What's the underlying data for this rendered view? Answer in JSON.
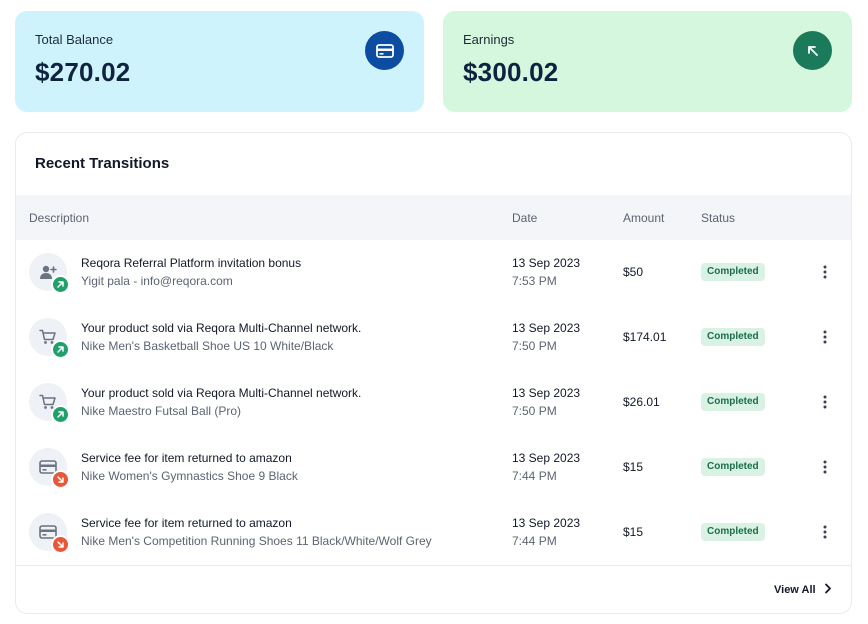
{
  "cards": {
    "balance": {
      "label": "Total Balance",
      "value": "$270.02",
      "icon": "credit-card-icon",
      "color": "#cff3fc"
    },
    "earnings": {
      "label": "Earnings",
      "value": "$300.02",
      "icon": "arrow-up-left-icon",
      "color": "#d4f7dd"
    }
  },
  "panel": {
    "title": "Recent Transitions",
    "columns": {
      "description": "Description",
      "date": "Date",
      "amount": "Amount",
      "status": "Status"
    },
    "rows": [
      {
        "icon": "user-add-icon",
        "direction": "up",
        "title": "Reqora Referral Platform invitation bonus",
        "subtitle": "Yigit pala - info@reqora.com",
        "date": "13 Sep 2023",
        "time": "7:53 PM",
        "amount": "$50",
        "status": "Completed"
      },
      {
        "icon": "cart-icon",
        "direction": "up",
        "title": "Your product sold via Reqora Multi-Channel network.",
        "subtitle": "Nike Men's Basketball Shoe US 10 White/Black",
        "date": "13 Sep 2023",
        "time": "7:50 PM",
        "amount": "$174.01",
        "status": "Completed"
      },
      {
        "icon": "cart-icon",
        "direction": "up",
        "title": "Your product sold via Reqora Multi-Channel network.",
        "subtitle": "Nike Maestro Futsal Ball (Pro)",
        "date": "13 Sep 2023",
        "time": "7:50 PM",
        "amount": "$26.01",
        "status": "Completed"
      },
      {
        "icon": "credit-card-icon",
        "direction": "down",
        "title": "Service fee for item returned to amazon",
        "subtitle": "Nike Women's Gymnastics Shoe 9 Black",
        "date": "13 Sep 2023",
        "time": "7:44 PM",
        "amount": "$15",
        "status": "Completed"
      },
      {
        "icon": "credit-card-icon",
        "direction": "down",
        "title": "Service fee for item returned to amazon",
        "subtitle": "Nike Men's Competition Running Shoes 11 Black/White/Wolf Grey",
        "date": "13 Sep 2023",
        "time": "7:44 PM",
        "amount": "$15",
        "status": "Completed"
      }
    ],
    "view_all": "View All"
  },
  "colors": {
    "up": "#22a06b",
    "down": "#e8573a",
    "status_bg": "#d9f2e4",
    "status_text": "#1b6e4a"
  }
}
